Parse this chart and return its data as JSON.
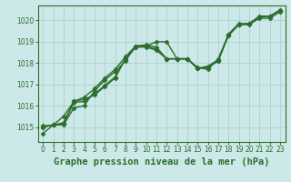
{
  "background_color": "#cce8e8",
  "grid_color": "#aacccc",
  "line_color": "#2d6e2d",
  "marker": "D",
  "markersize": 2.5,
  "linewidth": 1.0,
  "title": "Graphe pression niveau de la mer (hPa)",
  "title_fontsize": 7.5,
  "xlim": [
    -0.5,
    23.5
  ],
  "ylim": [
    1014.3,
    1020.7
  ],
  "yticks": [
    1015,
    1016,
    1017,
    1018,
    1019,
    1020
  ],
  "xticks": [
    0,
    1,
    2,
    3,
    4,
    5,
    6,
    7,
    8,
    9,
    10,
    11,
    12,
    13,
    14,
    15,
    16,
    17,
    18,
    19,
    20,
    21,
    22,
    23
  ],
  "series": [
    [
      1014.7,
      1015.1,
      1015.1,
      1015.9,
      1016.0,
      1016.7,
      1017.2,
      1017.6,
      1018.1,
      1018.8,
      1018.8,
      1019.0,
      1019.0,
      1018.2,
      1018.2,
      1017.8,
      1017.7,
      1018.2,
      1019.3,
      1019.8,
      1019.8,
      1020.1,
      1020.1,
      1020.4
    ],
    [
      1015.0,
      1015.1,
      1015.5,
      1016.2,
      1016.4,
      1016.8,
      1017.3,
      1017.7,
      1018.3,
      1018.8,
      1018.85,
      1018.75,
      1018.2,
      1018.2,
      1018.2,
      1017.75,
      1017.85,
      1018.15,
      1019.35,
      1019.85,
      1019.85,
      1020.2,
      1020.2,
      1020.5
    ],
    [
      1015.0,
      1015.1,
      1015.2,
      1016.2,
      1016.3,
      1016.5,
      1016.9,
      1017.3,
      1018.2,
      1018.75,
      1018.75,
      1018.6,
      1018.2,
      1018.2,
      1018.2,
      1017.75,
      1017.8,
      1018.1,
      1019.35,
      1019.8,
      1019.85,
      1020.15,
      1020.2,
      1020.45
    ],
    [
      1015.05,
      1015.1,
      1015.15,
      1016.15,
      1016.2,
      1016.55,
      1016.95,
      1017.35,
      1018.2,
      1018.75,
      1018.8,
      1018.65,
      1018.2,
      1018.2,
      1018.2,
      1017.75,
      1017.8,
      1018.1,
      1019.3,
      1019.8,
      1019.85,
      1020.15,
      1020.2,
      1020.45
    ]
  ]
}
